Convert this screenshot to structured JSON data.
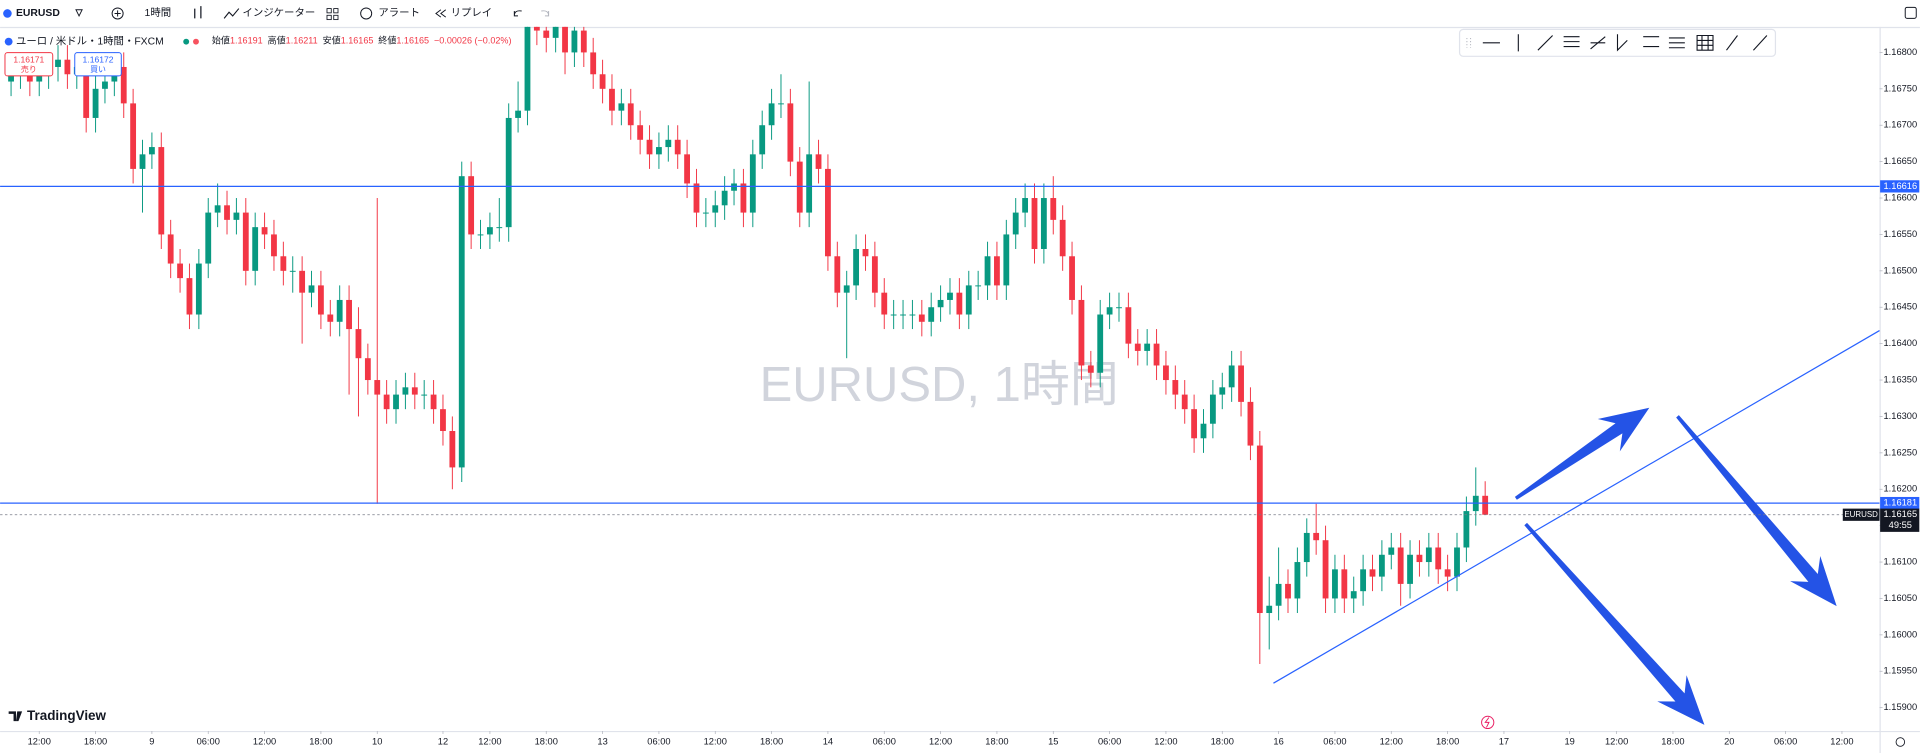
{
  "toolbar": {
    "symbol": "EURUSD",
    "interval": "1時間",
    "indicators": "インジケーター",
    "alerts": "アラート",
    "replay": "リプレイ"
  },
  "legend": {
    "title": "ユーロ / 米ドル・1時間・FXCM",
    "open_label": "始値",
    "high_label": "高値",
    "low_label": "安値",
    "close_label": "終値",
    "change": "−0.00026 (−0.02%)"
  },
  "quote": {
    "sell_price": 1.16171,
    "sell_label": "売り",
    "buy_price": 1.16172,
    "buy_label": "買い"
  },
  "watermark": "EURUSD, 1時間",
  "brand": "TradingView",
  "symbol_tag": "EURUSD",
  "countdown": "49:55",
  "chart_data": {
    "type": "candlestick",
    "up_color": "#089981",
    "down_color": "#f23645",
    "open": [
      1.1676,
      1.1677,
      1.1678,
      1.1676,
      1.1677,
      1.1678,
      1.1679,
      1.1677,
      1.1678,
      1.1671,
      1.1675,
      1.1676,
      1.1678,
      1.1673,
      1.1664,
      1.1666,
      1.1667,
      1.1655,
      1.1651,
      1.1649,
      1.1644,
      1.1651,
      1.1658,
      1.1659,
      1.1657,
      1.1658,
      1.165,
      1.1656,
      1.1655,
      1.1652,
      1.165,
      1.165,
      1.1647,
      1.1648,
      1.1644,
      1.1643,
      1.1646,
      1.1642,
      1.1638,
      1.1635,
      1.1633,
      1.1631,
      1.1633,
      1.1634,
      1.1633,
      1.1633,
      1.1631,
      1.1628,
      1.1623,
      1.1663,
      1.1655,
      1.1655,
      1.1656,
      1.1656,
      1.1671,
      1.1672,
      1.1684,
      1.1683,
      1.1682,
      1.1684,
      1.168,
      1.1683,
      1.168,
      1.1677,
      1.1675,
      1.1672,
      1.1673,
      1.167,
      1.1668,
      1.1666,
      1.1667,
      1.1668,
      1.1666,
      1.1662,
      1.1658,
      1.1658,
      1.1659,
      1.1661,
      1.1662,
      1.1658,
      1.1666,
      1.167,
      1.1673,
      1.1673,
      1.1665,
      1.1658,
      1.1666,
      1.1664,
      1.1652,
      1.1647,
      1.1648,
      1.1653,
      1.1652,
      1.1647,
      1.1644,
      1.1644,
      1.1644,
      1.1644,
      1.1643,
      1.1645,
      1.1646,
      1.1647,
      1.1644,
      1.1648,
      1.1648,
      1.1652,
      1.1648,
      1.1655,
      1.1658,
      1.166,
      1.1653,
      1.166,
      1.1657,
      1.1652,
      1.1646,
      1.1637,
      1.1636,
      1.1644,
      1.1645,
      1.1645,
      1.164,
      1.1639,
      1.164,
      1.1637,
      1.1635,
      1.1633,
      1.1631,
      1.1627,
      1.1629,
      1.1633,
      1.1634,
      1.1637,
      1.1632,
      1.1626,
      1.1603,
      1.1604,
      1.1607,
      1.1605,
      1.161,
      1.1614,
      1.1613,
      1.1605,
      1.1609,
      1.1605,
      1.1606,
      1.1609,
      1.1608,
      1.1611,
      1.1612,
      1.1607,
      1.1611,
      1.161,
      1.1612,
      1.1609,
      1.1608,
      1.1612,
      1.1617,
      1.16191
    ],
    "high": [
      1.1679,
      1.168,
      1.168,
      1.1679,
      1.168,
      1.1681,
      1.1681,
      1.168,
      1.168,
      1.1677,
      1.1678,
      1.168,
      1.168,
      1.1675,
      1.1668,
      1.1669,
      1.1669,
      1.1657,
      1.1653,
      1.1651,
      1.1653,
      1.166,
      1.1662,
      1.1661,
      1.166,
      1.166,
      1.1658,
      1.1658,
      1.1657,
      1.1654,
      1.1652,
      1.1652,
      1.165,
      1.165,
      1.1646,
      1.1648,
      1.1648,
      1.1645,
      1.164,
      1.166,
      1.1635,
      1.1635,
      1.1636,
      1.1636,
      1.1635,
      1.1635,
      1.1633,
      1.163,
      1.1665,
      1.1665,
      1.1657,
      1.1658,
      1.166,
      1.1673,
      1.1676,
      1.1686,
      1.1686,
      1.1685,
      1.1686,
      1.1686,
      1.1685,
      1.1685,
      1.1682,
      1.1679,
      1.1677,
      1.1675,
      1.1675,
      1.1672,
      1.167,
      1.1669,
      1.167,
      1.167,
      1.1668,
      1.1664,
      1.166,
      1.1661,
      1.1663,
      1.1664,
      1.1664,
      1.1668,
      1.1672,
      1.1675,
      1.1677,
      1.1675,
      1.1667,
      1.1676,
      1.1668,
      1.1666,
      1.1654,
      1.165,
      1.1655,
      1.1655,
      1.1654,
      1.1649,
      1.1646,
      1.1646,
      1.1646,
      1.1646,
      1.1647,
      1.1648,
      1.1649,
      1.1649,
      1.165,
      1.165,
      1.1654,
      1.1654,
      1.1657,
      1.166,
      1.1662,
      1.1662,
      1.1662,
      1.1663,
      1.1659,
      1.1654,
      1.1648,
      1.1639,
      1.1646,
      1.1647,
      1.1647,
      1.1647,
      1.1642,
      1.1642,
      1.1642,
      1.1639,
      1.1637,
      1.1635,
      1.1633,
      1.1631,
      1.1635,
      1.1636,
      1.1639,
      1.1639,
      1.1634,
      1.1628,
      1.1608,
      1.1612,
      1.1609,
      1.1612,
      1.1616,
      1.1618,
      1.1615,
      1.1611,
      1.1611,
      1.1608,
      1.1611,
      1.1611,
      1.1613,
      1.1614,
      1.1614,
      1.1613,
      1.1613,
      1.1614,
      1.1614,
      1.1611,
      1.1614,
      1.1619,
      1.1623,
      1.16211
    ],
    "low": [
      1.1674,
      1.1675,
      1.1674,
      1.1674,
      1.1675,
      1.1676,
      1.1675,
      1.1675,
      1.1669,
      1.1669,
      1.1673,
      1.1674,
      1.1671,
      1.1662,
      1.1658,
      1.1664,
      1.1653,
      1.1649,
      1.1647,
      1.1642,
      1.1642,
      1.1649,
      1.1656,
      1.1655,
      1.1655,
      1.1648,
      1.1648,
      1.1653,
      1.165,
      1.1648,
      1.1647,
      1.164,
      1.1645,
      1.1642,
      1.1641,
      1.1641,
      1.1633,
      1.163,
      1.1633,
      1.1618,
      1.1629,
      1.1629,
      1.1631,
      1.1631,
      1.1631,
      1.1629,
      1.1626,
      1.162,
      1.1621,
      1.1653,
      1.1653,
      1.1653,
      1.1654,
      1.1654,
      1.1669,
      1.167,
      1.1681,
      1.168,
      1.168,
      1.1677,
      1.1678,
      1.1678,
      1.1675,
      1.1673,
      1.167,
      1.167,
      1.1668,
      1.1666,
      1.1664,
      1.1664,
      1.1665,
      1.1664,
      1.166,
      1.1656,
      1.1656,
      1.1656,
      1.1657,
      1.1659,
      1.1656,
      1.1656,
      1.1664,
      1.1668,
      1.1671,
      1.1663,
      1.1656,
      1.1656,
      1.1662,
      1.165,
      1.1645,
      1.1638,
      1.1646,
      1.165,
      1.1645,
      1.1642,
      1.1642,
      1.1642,
      1.1642,
      1.1641,
      1.1641,
      1.1643,
      1.1644,
      1.1642,
      1.1642,
      1.1646,
      1.1646,
      1.1646,
      1.1646,
      1.1653,
      1.1656,
      1.1651,
      1.1651,
      1.1655,
      1.165,
      1.1644,
      1.1635,
      1.1634,
      1.1634,
      1.1642,
      1.1643,
      1.1638,
      1.1637,
      1.1637,
      1.1635,
      1.1633,
      1.1631,
      1.1629,
      1.1625,
      1.1625,
      1.1627,
      1.1631,
      1.1632,
      1.163,
      1.1624,
      1.1596,
      1.1598,
      1.1602,
      1.1603,
      1.1603,
      1.1608,
      1.1611,
      1.1603,
      1.1603,
      1.1603,
      1.1603,
      1.1604,
      1.1606,
      1.1606,
      1.1609,
      1.1604,
      1.1605,
      1.1608,
      1.1608,
      1.1607,
      1.1606,
      1.1606,
      1.161,
      1.1615,
      1.16165
    ],
    "close": [
      1.1677,
      1.1678,
      1.1676,
      1.1677,
      1.1678,
      1.1679,
      1.1677,
      1.1678,
      1.1671,
      1.1675,
      1.1676,
      1.1678,
      1.1673,
      1.1664,
      1.1666,
      1.1667,
      1.1655,
      1.1651,
      1.1649,
      1.1644,
      1.1651,
      1.1658,
      1.1659,
      1.1657,
      1.1658,
      1.165,
      1.1656,
      1.1655,
      1.1652,
      1.165,
      1.165,
      1.1647,
      1.1648,
      1.1644,
      1.1643,
      1.1646,
      1.1642,
      1.1638,
      1.1635,
      1.1633,
      1.1631,
      1.1633,
      1.1634,
      1.1633,
      1.1633,
      1.1631,
      1.1628,
      1.1623,
      1.1663,
      1.1655,
      1.1655,
      1.1656,
      1.1656,
      1.1671,
      1.1672,
      1.1684,
      1.1683,
      1.1682,
      1.1684,
      1.168,
      1.1683,
      1.168,
      1.1677,
      1.1675,
      1.1672,
      1.1673,
      1.167,
      1.1668,
      1.1666,
      1.1667,
      1.1668,
      1.1666,
      1.1662,
      1.1658,
      1.1658,
      1.1659,
      1.1661,
      1.1662,
      1.1658,
      1.1666,
      1.167,
      1.1673,
      1.1673,
      1.1665,
      1.1658,
      1.1666,
      1.1664,
      1.1652,
      1.1647,
      1.1648,
      1.1653,
      1.1652,
      1.1647,
      1.1644,
      1.1644,
      1.1644,
      1.1644,
      1.1643,
      1.1645,
      1.1646,
      1.1647,
      1.1644,
      1.1648,
      1.1648,
      1.1652,
      1.1648,
      1.1655,
      1.1658,
      1.166,
      1.1653,
      1.166,
      1.1657,
      1.1652,
      1.1646,
      1.1637,
      1.1636,
      1.1644,
      1.1645,
      1.1645,
      1.164,
      1.1639,
      1.164,
      1.1637,
      1.1635,
      1.1633,
      1.1631,
      1.1627,
      1.1629,
      1.1633,
      1.1634,
      1.1637,
      1.1632,
      1.1626,
      1.1603,
      1.1604,
      1.1607,
      1.1605,
      1.161,
      1.1614,
      1.1613,
      1.1605,
      1.1609,
      1.1605,
      1.1606,
      1.1609,
      1.1608,
      1.1611,
      1.1612,
      1.1607,
      1.1611,
      1.161,
      1.1612,
      1.1609,
      1.1608,
      1.1612,
      1.1617,
      1.16191,
      1.16165
    ],
    "xlim": [
      -1.17,
      199
    ],
    "ylim": [
      1.15868,
      1.16835
    ],
    "yticks": [
      {
        "value": 1.159,
        "label": "1.15900"
      },
      {
        "value": 1.1595,
        "label": "1.15950"
      },
      {
        "value": 1.16,
        "label": "1.16000"
      },
      {
        "value": 1.1605,
        "label": "1.16050"
      },
      {
        "value": 1.161,
        "label": "1.16100"
      },
      {
        "value": 1.1615,
        "label": "1.16150"
      },
      {
        "value": 1.162,
        "label": "1.16200"
      },
      {
        "value": 1.1625,
        "label": "1.16250"
      },
      {
        "value": 1.163,
        "label": "1.16300"
      },
      {
        "value": 1.1635,
        "label": "1.16350"
      },
      {
        "value": 1.164,
        "label": "1.16400"
      },
      {
        "value": 1.1645,
        "label": "1.16450"
      },
      {
        "value": 1.165,
        "label": "1.16500"
      },
      {
        "value": 1.1655,
        "label": "1.16550"
      },
      {
        "value": 1.166,
        "label": "1.16600"
      },
      {
        "value": 1.1665,
        "label": "1.16650"
      },
      {
        "value": 1.167,
        "label": "1.16700"
      },
      {
        "value": 1.1675,
        "label": "1.16750"
      },
      {
        "value": 1.168,
        "label": "1.16800"
      }
    ],
    "xticks": [
      {
        "value": 3,
        "label": "12:00"
      },
      {
        "value": 9,
        "label": "18:00"
      },
      {
        "value": 15,
        "label": "9"
      },
      {
        "value": 21,
        "label": "06:00"
      },
      {
        "value": 27,
        "label": "12:00"
      },
      {
        "value": 33,
        "label": "18:00"
      },
      {
        "value": 39,
        "label": "10"
      },
      {
        "value": 46,
        "label": "12"
      },
      {
        "value": 51,
        "label": "12:00"
      },
      {
        "value": 57,
        "label": "18:00"
      },
      {
        "value": 63,
        "label": "13"
      },
      {
        "value": 69,
        "label": "06:00"
      },
      {
        "value": 75,
        "label": "12:00"
      },
      {
        "value": 81,
        "label": "18:00"
      },
      {
        "value": 87,
        "label": "14"
      },
      {
        "value": 93,
        "label": "06:00"
      },
      {
        "value": 99,
        "label": "12:00"
      },
      {
        "value": 105,
        "label": "18:00"
      },
      {
        "value": 111,
        "label": "15"
      },
      {
        "value": 117,
        "label": "06:00"
      },
      {
        "value": 123,
        "label": "12:00"
      },
      {
        "value": 129,
        "label": "18:00"
      },
      {
        "value": 135,
        "label": "16"
      },
      {
        "value": 141,
        "label": "06:00"
      },
      {
        "value": 147,
        "label": "12:00"
      },
      {
        "value": 153,
        "label": "18:00"
      },
      {
        "value": 159,
        "label": "17"
      },
      {
        "value": 166,
        "label": "19"
      },
      {
        "value": 171,
        "label": "12:00"
      },
      {
        "value": 177,
        "label": "18:00"
      },
      {
        "value": 183,
        "label": "20"
      },
      {
        "value": 189,
        "label": "06:00"
      },
      {
        "value": 195,
        "label": "12:00"
      }
    ],
    "horizontal_lines": [
      {
        "value": 1.16616,
        "color": "#2962ff"
      },
      {
        "value": 1.16181,
        "color": "#2962ff"
      }
    ]
  }
}
